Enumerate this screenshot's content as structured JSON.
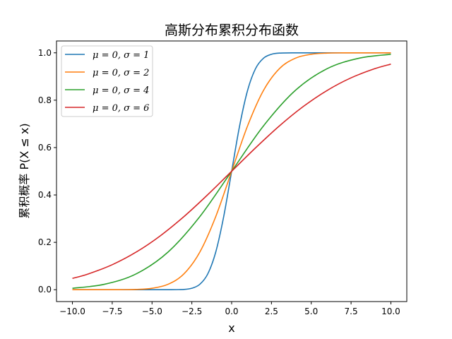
{
  "chart_data": {
    "type": "line",
    "title": "高斯分布累积分布函数",
    "xlabel": "x",
    "ylabel": "累积概率 P(X ≤ x)",
    "xlim": [
      -11.0,
      11.0
    ],
    "ylim": [
      -0.05,
      1.05
    ],
    "xticks": [
      -10.0,
      -7.5,
      -5.0,
      -2.5,
      0.0,
      2.5,
      5.0,
      7.5,
      10.0
    ],
    "xtick_labels": [
      "−10.0",
      "−7.5",
      "−5.0",
      "−2.5",
      "0.0",
      "2.5",
      "5.0",
      "7.5",
      "10.0"
    ],
    "yticks": [
      0.0,
      0.2,
      0.4,
      0.6,
      0.8,
      1.0
    ],
    "ytick_labels": [
      "0.0",
      "0.2",
      "0.4",
      "0.6",
      "0.8",
      "1.0"
    ],
    "grid": false,
    "legend_position": "top-left",
    "series": [
      {
        "name": "μ = 0, σ = 1",
        "color": "#1f77b4",
        "x": [
          -10,
          -7.5,
          -5,
          -4,
          -3,
          -2.5,
          -2,
          -1.5,
          -1,
          -0.5,
          0,
          0.5,
          1,
          1.5,
          2,
          2.5,
          3,
          4,
          5,
          7.5,
          10
        ],
        "y": [
          0.0,
          0.0,
          0.0,
          3e-05,
          0.0013,
          0.0062,
          0.0228,
          0.0668,
          0.1587,
          0.3085,
          0.5,
          0.6915,
          0.8413,
          0.9332,
          0.9772,
          0.9938,
          0.9987,
          0.99997,
          1.0,
          1.0,
          1.0
        ]
      },
      {
        "name": "μ = 0, σ = 2",
        "color": "#ff7f0e",
        "x": [
          -10,
          -8,
          -7,
          -6,
          -5,
          -4,
          -3,
          -2,
          -1,
          0,
          1,
          2,
          3,
          4,
          5,
          6,
          7,
          8,
          10
        ],
        "y": [
          0.0,
          3e-05,
          0.0002,
          0.0013,
          0.0062,
          0.0228,
          0.0668,
          0.1587,
          0.3085,
          0.5,
          0.6915,
          0.8413,
          0.9332,
          0.9772,
          0.9938,
          0.9987,
          0.9998,
          0.99997,
          1.0
        ]
      },
      {
        "name": "μ = 0, σ = 4",
        "color": "#2ca02c",
        "x": [
          -10,
          -8,
          -6,
          -4,
          -2,
          0,
          2,
          4,
          6,
          8,
          10
        ],
        "y": [
          0.0062,
          0.0228,
          0.0668,
          0.1587,
          0.3085,
          0.5,
          0.6915,
          0.8413,
          0.9332,
          0.9772,
          0.9938
        ]
      },
      {
        "name": "μ = 0, σ = 6",
        "color": "#d62728",
        "x": [
          -10,
          -9,
          -7.5,
          -6,
          -4.5,
          -3,
          -1.5,
          0,
          1.5,
          3,
          4.5,
          6,
          7.5,
          9,
          10
        ],
        "y": [
          0.0478,
          0.0668,
          0.1056,
          0.1587,
          0.2266,
          0.3085,
          0.4013,
          0.5,
          0.5987,
          0.6915,
          0.7734,
          0.8413,
          0.8944,
          0.9332,
          0.9522
        ]
      }
    ]
  }
}
